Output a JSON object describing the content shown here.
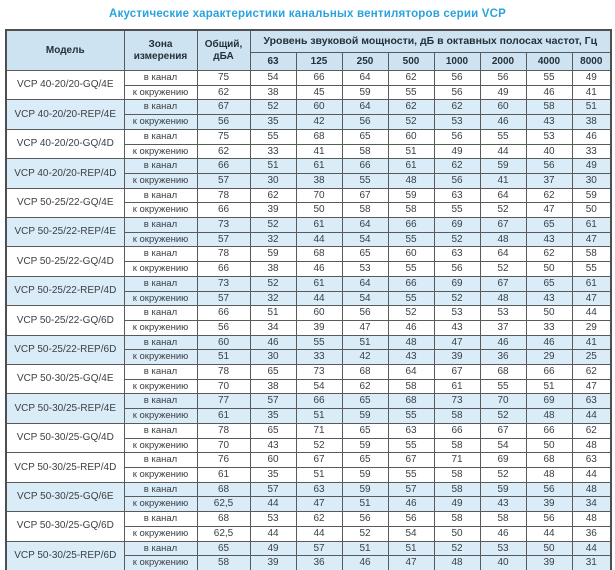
{
  "title": "Акустические характеристики канальных вентиляторов  серии VCP",
  "colors": {
    "title_accent": "#2aa2dc",
    "header_bg": "#cde3f1",
    "shaded_row_bg": "#d9ecf8",
    "grid_border": "#4f4f4f"
  },
  "table": {
    "header": {
      "model": "Модель",
      "zone": "Зона измерения",
      "total": "Общий, дБА",
      "bands_title": "Уровень звуковой мощности, дБ в октавных полосах частот, Гц",
      "frequencies": [
        "63",
        "125",
        "250",
        "500",
        "1000",
        "2000",
        "4000",
        "8000"
      ]
    },
    "models": [
      {
        "name": "VCP 40-20/20-GQ/4E",
        "shaded": false,
        "rows": [
          {
            "zone": "в канал",
            "total": "75",
            "bands": [
              "54",
              "66",
              "64",
              "62",
              "56",
              "56",
              "55",
              "49"
            ]
          },
          {
            "zone": "к окружению",
            "total": "62",
            "bands": [
              "38",
              "45",
              "59",
              "55",
              "56",
              "49",
              "46",
              "41"
            ]
          }
        ]
      },
      {
        "name": "VCP 40-20/20-REP/4E",
        "shaded": true,
        "rows": [
          {
            "zone": "в канал",
            "total": "67",
            "bands": [
              "52",
              "60",
              "64",
              "62",
              "62",
              "60",
              "58",
              "51"
            ]
          },
          {
            "zone": "к окружению",
            "total": "56",
            "bands": [
              "35",
              "42",
              "56",
              "52",
              "53",
              "46",
              "43",
              "38"
            ]
          }
        ]
      },
      {
        "name": "VCP 40-20/20-GQ/4D",
        "shaded": false,
        "rows": [
          {
            "zone": "в канал",
            "total": "75",
            "bands": [
              "55",
              "68",
              "65",
              "60",
              "56",
              "55",
              "53",
              "46"
            ]
          },
          {
            "zone": "к окружению",
            "total": "62",
            "bands": [
              "33",
              "41",
              "58",
              "51",
              "49",
              "44",
              "40",
              "33"
            ]
          }
        ]
      },
      {
        "name": "VCP 40-20/20-REP/4D",
        "shaded": true,
        "rows": [
          {
            "zone": "в канал",
            "total": "66",
            "bands": [
              "51",
              "61",
              "66",
              "61",
              "62",
              "59",
              "56",
              "49"
            ]
          },
          {
            "zone": "к окружению",
            "total": "57",
            "bands": [
              "30",
              "38",
              "55",
              "48",
              "56",
              "41",
              "37",
              "30"
            ]
          }
        ]
      },
      {
        "name": "VCP 50-25/22-GQ/4E",
        "shaded": false,
        "rows": [
          {
            "zone": "в канал",
            "total": "78",
            "bands": [
              "62",
              "70",
              "67",
              "59",
              "63",
              "64",
              "62",
              "59"
            ]
          },
          {
            "zone": "к окружению",
            "total": "66",
            "bands": [
              "39",
              "50",
              "58",
              "58",
              "55",
              "52",
              "47",
              "50"
            ]
          }
        ]
      },
      {
        "name": "VCP 50-25/22-REP/4E",
        "shaded": true,
        "rows": [
          {
            "zone": "в канал",
            "total": "73",
            "bands": [
              "52",
              "61",
              "64",
              "66",
              "69",
              "67",
              "65",
              "61"
            ]
          },
          {
            "zone": "к окружению",
            "total": "57",
            "bands": [
              "32",
              "44",
              "54",
              "55",
              "52",
              "48",
              "43",
              "47"
            ]
          }
        ]
      },
      {
        "name": "VCP 50-25/22-GQ/4D",
        "shaded": false,
        "rows": [
          {
            "zone": "в канал",
            "total": "78",
            "bands": [
              "59",
              "68",
              "65",
              "60",
              "63",
              "64",
              "62",
              "58"
            ]
          },
          {
            "zone": "к окружению",
            "total": "66",
            "bands": [
              "38",
              "46",
              "53",
              "55",
              "56",
              "52",
              "50",
              "55"
            ]
          }
        ]
      },
      {
        "name": "VCP 50-25/22-REP/4D",
        "shaded": true,
        "rows": [
          {
            "zone": "в канал",
            "total": "73",
            "bands": [
              "52",
              "61",
              "64",
              "66",
              "69",
              "67",
              "65",
              "61"
            ]
          },
          {
            "zone": "к окружению",
            "total": "57",
            "bands": [
              "32",
              "44",
              "54",
              "55",
              "52",
              "48",
              "43",
              "47"
            ]
          }
        ]
      },
      {
        "name": "VCP 50-25/22-GQ/6D",
        "shaded": false,
        "rows": [
          {
            "zone": "в канал",
            "total": "66",
            "bands": [
              "51",
              "60",
              "56",
              "52",
              "53",
              "53",
              "50",
              "44"
            ]
          },
          {
            "zone": "к окружению",
            "total": "56",
            "bands": [
              "34",
              "39",
              "47",
              "46",
              "43",
              "37",
              "33",
              "29"
            ]
          }
        ]
      },
      {
        "name": "VCP 50-25/22-REP/6D",
        "shaded": true,
        "rows": [
          {
            "zone": "в канал",
            "total": "60",
            "bands": [
              "46",
              "55",
              "51",
              "48",
              "47",
              "46",
              "46",
              "41"
            ]
          },
          {
            "zone": "к окружению",
            "total": "51",
            "bands": [
              "30",
              "33",
              "42",
              "43",
              "39",
              "36",
              "29",
              "25"
            ]
          }
        ]
      },
      {
        "name": "VCP 50-30/25-GQ/4E",
        "shaded": false,
        "rows": [
          {
            "zone": "в канал",
            "total": "78",
            "bands": [
              "65",
              "73",
              "68",
              "64",
              "67",
              "68",
              "66",
              "62"
            ]
          },
          {
            "zone": "к окружению",
            "total": "70",
            "bands": [
              "38",
              "54",
              "62",
              "58",
              "61",
              "55",
              "51",
              "47"
            ]
          }
        ]
      },
      {
        "name": "VCP 50-30/25-REP/4E",
        "shaded": true,
        "rows": [
          {
            "zone": "в канал",
            "total": "77",
            "bands": [
              "57",
              "66",
              "65",
              "68",
              "73",
              "70",
              "69",
              "63"
            ]
          },
          {
            "zone": "к окружению",
            "total": "61",
            "bands": [
              "35",
              "51",
              "59",
              "55",
              "58",
              "52",
              "48",
              "44"
            ]
          }
        ]
      },
      {
        "name": "VCP 50-30/25-GQ/4D",
        "shaded": false,
        "rows": [
          {
            "zone": "в канал",
            "total": "78",
            "bands": [
              "65",
              "71",
              "65",
              "63",
              "66",
              "67",
              "66",
              "62"
            ]
          },
          {
            "zone": "к окружению",
            "total": "70",
            "bands": [
              "43",
              "52",
              "59",
              "55",
              "58",
              "54",
              "50",
              "48"
            ]
          }
        ]
      },
      {
        "name": "VCP 50-30/25-REP/4D",
        "shaded": false,
        "rows": [
          {
            "zone": "в канал",
            "total": "76",
            "bands": [
              "60",
              "67",
              "65",
              "67",
              "71",
              "69",
              "68",
              "63"
            ]
          },
          {
            "zone": "к окружению",
            "total": "61",
            "bands": [
              "35",
              "51",
              "59",
              "55",
              "58",
              "52",
              "48",
              "44"
            ]
          }
        ]
      },
      {
        "name": "VCP 50-30/25-GQ/6E",
        "shaded": true,
        "rows": [
          {
            "zone": "в канал",
            "total": "68",
            "bands": [
              "57",
              "63",
              "59",
              "57",
              "58",
              "59",
              "56",
              "48"
            ]
          },
          {
            "zone": "к окружению",
            "total": "62,5",
            "bands": [
              "44",
              "47",
              "51",
              "46",
              "49",
              "43",
              "39",
              "34"
            ]
          }
        ]
      },
      {
        "name": "VCP 50-30/25-GQ/6D",
        "shaded": false,
        "rows": [
          {
            "zone": "в канал",
            "total": "68",
            "bands": [
              "53",
              "62",
              "56",
              "56",
              "58",
              "58",
              "56",
              "48"
            ]
          },
          {
            "zone": "к окружению",
            "total": "62,5",
            "bands": [
              "44",
              "44",
              "52",
              "54",
              "50",
              "46",
              "44",
              "36"
            ]
          }
        ]
      },
      {
        "name": "VCP 50-30/25-REP/6D",
        "shaded": true,
        "rows": [
          {
            "zone": "в канал",
            "total": "65",
            "bands": [
              "49",
              "57",
              "51",
              "51",
              "52",
              "53",
              "50",
              "44"
            ]
          },
          {
            "zone": "к окружению",
            "total": "58",
            "bands": [
              "39",
              "36",
              "46",
              "47",
              "48",
              "40",
              "39",
              "31"
            ]
          }
        ]
      }
    ]
  }
}
